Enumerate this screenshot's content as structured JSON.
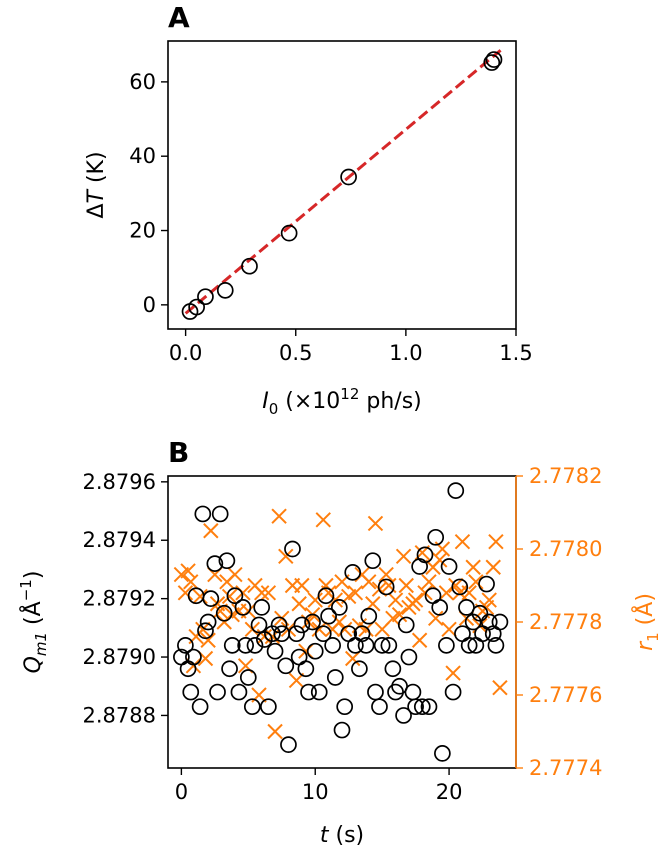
{
  "colors": {
    "black": "#000000",
    "fit": "#d62728",
    "orange": "#ff7f0e"
  },
  "chart_data": [
    {
      "panel": "A",
      "type": "scatter",
      "xlabel": {
        "main": "I",
        "sub": "0",
        "rest_prefix": " (×10",
        "sup": "12",
        "rest_suffix": " ph/s)"
      },
      "ylabel": {
        "prefix": "Δ",
        "italic": "T",
        "suffix": " (K)"
      },
      "xlim": [
        -0.08,
        1.5
      ],
      "ylim": [
        -6.5,
        71
      ],
      "xticks": [
        "0.0",
        "0.5",
        "1.0",
        "1.5"
      ],
      "xtick_values": [
        0,
        0.5,
        1.0,
        1.5
      ],
      "yticks": [
        "0",
        "20",
        "40",
        "60"
      ],
      "ytick_values": [
        0,
        20,
        40,
        60
      ],
      "points": {
        "marker": "circle",
        "x": [
          0.02,
          0.05,
          0.09,
          0.18,
          0.29,
          0.47,
          0.74,
          1.39,
          1.4
        ],
        "y": [
          -1.8,
          -0.6,
          2.2,
          3.9,
          10.4,
          19.3,
          34.4,
          65.2,
          66.0
        ]
      },
      "fit": {
        "style": "dashed",
        "x": [
          0.0,
          1.43
        ],
        "y": [
          -2.3,
          68.5
        ]
      }
    },
    {
      "panel": "B",
      "type": "scatter",
      "xlabel": {
        "italic": "t",
        "suffix": " (s)"
      },
      "ylabel_left": {
        "main": "Q",
        "sub": "m1",
        "rest": " (Å",
        "sup": "−1",
        "end": ")"
      },
      "ylabel_right": {
        "main": "r",
        "sub": "1",
        "rest": " (Å)"
      },
      "xlim": [
        -1,
        25
      ],
      "ylim_left": [
        2.87862,
        2.87962
      ],
      "ylim_right": [
        2.7774,
        2.7782
      ],
      "xticks": [
        "0",
        "10",
        "20"
      ],
      "xtick_values": [
        0,
        10,
        20
      ],
      "yticks_left": [
        "2.8788",
        "2.8790",
        "2.8792",
        "2.8794",
        "2.8796"
      ],
      "ytick_left_values": [
        2.8788,
        2.879,
        2.8792,
        2.8794,
        2.8796
      ],
      "yticks_right": [
        "2.7774",
        "2.7776",
        "2.7778",
        "2.7780",
        "2.7782"
      ],
      "ytick_right_values": [
        2.7774,
        2.7776,
        2.7778,
        2.778,
        2.7782
      ],
      "left_series": {
        "marker": "circle",
        "x": [
          0.0,
          0.3,
          0.5,
          0.7,
          0.9,
          1.1,
          1.4,
          1.6,
          1.8,
          2.0,
          2.2,
          2.5,
          2.7,
          2.9,
          3.2,
          3.4,
          3.6,
          3.8,
          4.0,
          4.3,
          4.6,
          4.8,
          5.0,
          5.3,
          5.5,
          5.8,
          6.0,
          6.2,
          6.5,
          6.8,
          7.0,
          7.3,
          7.5,
          7.8,
          8.0,
          8.3,
          8.6,
          8.8,
          9.0,
          9.3,
          9.5,
          9.8,
          10.0,
          10.3,
          10.6,
          10.8,
          11.0,
          11.3,
          11.5,
          11.8,
          12.0,
          12.2,
          12.5,
          12.8,
          13.0,
          13.3,
          13.5,
          13.8,
          14.0,
          14.3,
          14.5,
          14.8,
          15.0,
          15.3,
          15.5,
          15.8,
          16.0,
          16.3,
          16.6,
          16.8,
          17.0,
          17.3,
          17.5,
          17.8,
          18.0,
          18.2,
          18.5,
          18.8,
          19.0,
          19.3,
          19.5,
          19.8,
          20.0,
          20.3,
          20.5,
          20.8,
          21.0,
          21.3,
          21.5,
          21.8,
          22.0,
          22.3,
          22.5,
          22.8,
          23.0,
          23.3,
          23.5,
          23.8
        ],
        "y": [
          2.879,
          2.87904,
          2.87896,
          2.87888,
          2.879,
          2.87921,
          2.87883,
          2.87949,
          2.87909,
          2.87912,
          2.8792,
          2.87932,
          2.87888,
          2.87949,
          2.87915,
          2.87933,
          2.87896,
          2.87904,
          2.87921,
          2.87888,
          2.87917,
          2.87904,
          2.87893,
          2.87883,
          2.87904,
          2.87911,
          2.87917,
          2.87906,
          2.87883,
          2.87908,
          2.87902,
          2.87911,
          2.87908,
          2.87897,
          2.8787,
          2.87937,
          2.87908,
          2.879,
          2.87911,
          2.87896,
          2.87888,
          2.87912,
          2.87902,
          2.87888,
          2.87908,
          2.87921,
          2.87914,
          2.87904,
          2.87893,
          2.87917,
          2.87875,
          2.87883,
          2.87908,
          2.87929,
          2.87904,
          2.87896,
          2.87908,
          2.87904,
          2.87914,
          2.87933,
          2.87888,
          2.87883,
          2.87904,
          2.87924,
          2.87904,
          2.87896,
          2.87888,
          2.8789,
          2.8788,
          2.87911,
          2.879,
          2.87888,
          2.87883,
          2.87931,
          2.87883,
          2.87935,
          2.87883,
          2.87921,
          2.87941,
          2.87917,
          2.87867,
          2.87904,
          2.87931,
          2.87888,
          2.87957,
          2.87924,
          2.87908,
          2.87917,
          2.87904,
          2.87912,
          2.87904,
          2.87915,
          2.87908,
          2.87925,
          2.87912,
          2.87908,
          2.87904,
          2.87912
        ],
        "y_marks_note": "Black circles"
      },
      "right_series": {
        "marker": "x",
        "x": [
          0.0,
          0.3,
          0.5,
          0.7,
          0.9,
          1.1,
          1.4,
          1.6,
          1.8,
          2.0,
          2.2,
          2.5,
          2.7,
          2.9,
          3.2,
          3.4,
          3.6,
          3.8,
          4.0,
          4.3,
          4.6,
          4.8,
          5.0,
          5.3,
          5.5,
          5.8,
          6.0,
          6.2,
          6.5,
          6.8,
          7.0,
          7.3,
          7.5,
          7.8,
          8.0,
          8.3,
          8.6,
          8.8,
          9.0,
          9.3,
          9.5,
          9.8,
          10.0,
          10.3,
          10.6,
          10.8,
          11.0,
          11.3,
          11.5,
          11.8,
          12.0,
          12.2,
          12.5,
          12.8,
          13.0,
          13.3,
          13.5,
          13.8,
          14.0,
          14.3,
          14.5,
          14.8,
          15.0,
          15.3,
          15.5,
          15.8,
          16.0,
          16.3,
          16.6,
          16.8,
          17.0,
          17.3,
          17.5,
          17.8,
          18.0,
          18.2,
          18.5,
          18.8,
          19.0,
          19.3,
          19.5,
          19.8,
          20.0,
          20.3,
          20.5,
          20.8,
          21.0,
          21.3,
          21.5,
          21.8,
          22.0,
          22.3,
          22.5,
          22.8,
          23.0,
          23.3,
          23.5,
          23.8
        ],
        "y": [
          2.77793,
          2.77788,
          2.77794,
          2.77791,
          2.77768,
          2.77776,
          2.77787,
          2.77778,
          2.7777,
          2.77775,
          2.77805,
          2.77793,
          2.77785,
          2.77783,
          2.7778,
          2.77791,
          2.77787,
          2.77782,
          2.77793,
          2.77783,
          2.77788,
          2.77768,
          2.77783,
          2.77778,
          2.7779,
          2.7776,
          2.77788,
          2.77776,
          2.77788,
          2.77776,
          2.7775,
          2.77809,
          2.77781,
          2.77798,
          2.77778,
          2.7779,
          2.77764,
          2.77785,
          2.7779,
          2.77772,
          2.7778,
          2.77782,
          2.77786,
          2.77778,
          2.77808,
          2.7779,
          2.77788,
          2.77778,
          2.77786,
          2.7778,
          2.77791,
          2.77778,
          2.77787,
          2.7777,
          2.77788,
          2.77779,
          2.77793,
          2.77778,
          2.77791,
          2.77785,
          2.77807,
          2.77789,
          2.77778,
          2.77793,
          2.7779,
          2.77781,
          2.77786,
          2.77782,
          2.77798,
          2.7779,
          2.77784,
          2.77785,
          2.77786,
          2.77775,
          2.77799,
          2.77788,
          2.77791,
          2.77795,
          2.77781,
          2.77797,
          2.778,
          2.77788,
          2.77778,
          2.77766,
          2.7779,
          2.77788,
          2.77802,
          2.77781,
          2.77788,
          2.77795,
          2.77791,
          2.77779,
          2.77783,
          2.77784,
          2.77786,
          2.77795,
          2.77802,
          2.77762
        ]
      }
    }
  ]
}
